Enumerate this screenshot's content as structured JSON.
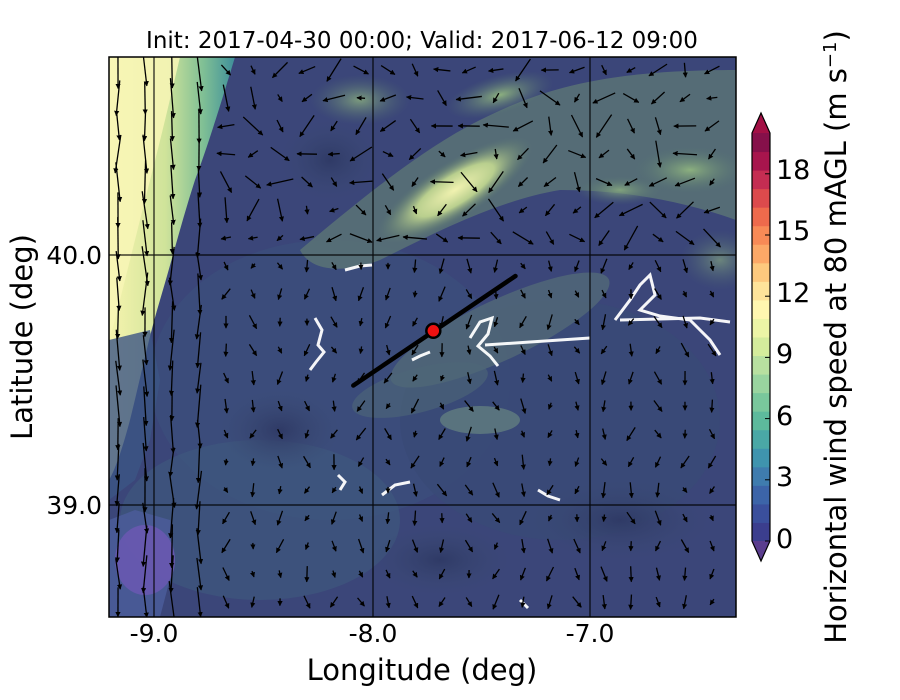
{
  "title": "Init: 2017-04-30 00:00; Valid: 2017-06-12 09:00",
  "xlabel": "Longitude (deg)",
  "ylabel": "Latitude (deg)",
  "colorbar": {
    "label": "Horizontal wind speed at 80 mAGL (m s",
    "label_sup": "−1",
    "label_end": ")",
    "ticks": [
      "0",
      "3",
      "6",
      "9",
      "12",
      "15",
      "18"
    ],
    "min": 0,
    "max": 20,
    "extend": "both",
    "colors": [
      "#3b3e8e",
      "#3a4f9c",
      "#3c64a8",
      "#3f7cae",
      "#3f94ae",
      "#4aa8a6",
      "#5dba9c",
      "#79c79c",
      "#99d49f",
      "#b8e0a0",
      "#d4ec9c",
      "#ecf5a6",
      "#fff7b0",
      "#fee39a",
      "#fdc97e",
      "#fca867",
      "#f88a56",
      "#ee6a4c",
      "#dc4a4c",
      "#c42d52",
      "#a7154d",
      "#86104a"
    ],
    "extend_low_color": "#5a3d8e",
    "extend_high_color": "#a31045"
  },
  "map": {
    "x_ticks": [
      "-9.0",
      "-8.0",
      "-7.0"
    ],
    "y_ticks": [
      "40.0",
      "39.0"
    ],
    "lon_range": [
      -9.25,
      -6.35
    ],
    "lat_range": [
      38.55,
      40.8
    ],
    "gridlines": true,
    "transect": {
      "start": [
        -8.12,
        39.48
      ],
      "end": [
        -7.37,
        39.92
      ]
    },
    "marker": {
      "lon": -7.75,
      "lat": 39.7,
      "color": "#ee1111"
    }
  }
}
